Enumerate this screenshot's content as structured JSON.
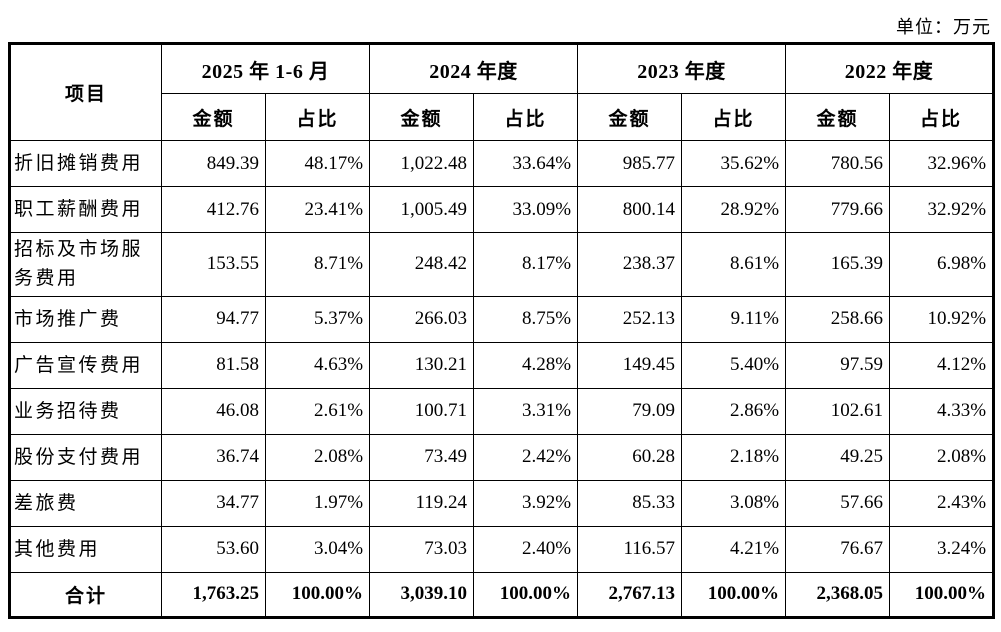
{
  "unit_label": "单位：万元",
  "table": {
    "item_header": "项目",
    "periods": [
      "2025 年 1-6 月",
      "2024 年度",
      "2023 年度",
      "2022 年度"
    ],
    "sub_headers": {
      "amount": "金额",
      "share": "占比"
    },
    "rows": [
      {
        "label": "折旧摊销费用",
        "values": [
          "849.39",
          "48.17%",
          "1,022.48",
          "33.64%",
          "985.77",
          "35.62%",
          "780.56",
          "32.96%"
        ]
      },
      {
        "label": "职工薪酬费用",
        "values": [
          "412.76",
          "23.41%",
          "1,005.49",
          "33.09%",
          "800.14",
          "28.92%",
          "779.66",
          "32.92%"
        ]
      },
      {
        "label": "招标及市场服务费用",
        "values": [
          "153.55",
          "8.71%",
          "248.42",
          "8.17%",
          "238.37",
          "8.61%",
          "165.39",
          "6.98%"
        ]
      },
      {
        "label": "市场推广费",
        "values": [
          "94.77",
          "5.37%",
          "266.03",
          "8.75%",
          "252.13",
          "9.11%",
          "258.66",
          "10.92%"
        ]
      },
      {
        "label": "广告宣传费用",
        "values": [
          "81.58",
          "4.63%",
          "130.21",
          "4.28%",
          "149.45",
          "5.40%",
          "97.59",
          "4.12%"
        ]
      },
      {
        "label": "业务招待费",
        "values": [
          "46.08",
          "2.61%",
          "100.71",
          "3.31%",
          "79.09",
          "2.86%",
          "102.61",
          "4.33%"
        ]
      },
      {
        "label": "股份支付费用",
        "values": [
          "36.74",
          "2.08%",
          "73.49",
          "2.42%",
          "60.28",
          "2.18%",
          "49.25",
          "2.08%"
        ]
      },
      {
        "label": "差旅费",
        "values": [
          "34.77",
          "1.97%",
          "119.24",
          "3.92%",
          "85.33",
          "3.08%",
          "57.66",
          "2.43%"
        ]
      },
      {
        "label": "其他费用",
        "values": [
          "53.60",
          "3.04%",
          "73.03",
          "2.40%",
          "116.57",
          "4.21%",
          "76.67",
          "3.24%"
        ]
      }
    ],
    "total": {
      "label": "合计",
      "values": [
        "1,763.25",
        "100.00%",
        "3,039.10",
        "100.00%",
        "2,767.13",
        "100.00%",
        "2,368.05",
        "100.00%"
      ]
    }
  }
}
